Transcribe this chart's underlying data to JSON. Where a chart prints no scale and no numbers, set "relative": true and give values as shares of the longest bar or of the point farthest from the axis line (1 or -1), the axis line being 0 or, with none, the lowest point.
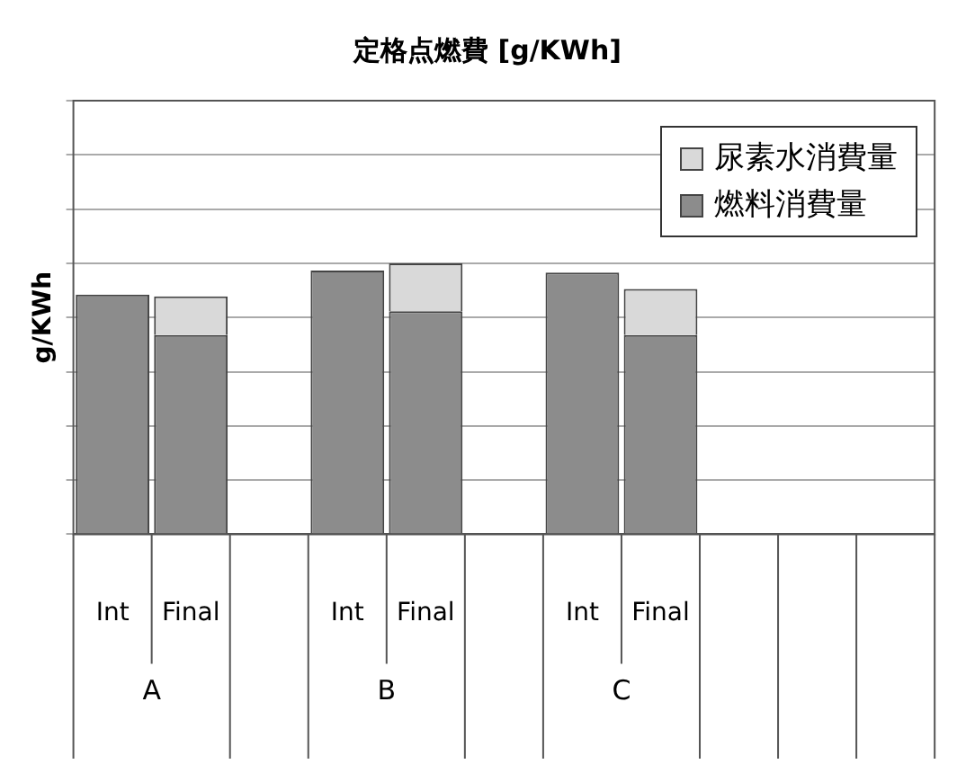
{
  "chart_data": {
    "type": "bar",
    "title": "定格点燃費 [g/KWh]",
    "ylabel": "g/KWh",
    "categories": [
      "Int",
      "Final",
      null,
      "Int",
      "Final",
      null,
      "Int",
      "Final",
      null,
      null,
      null
    ],
    "annotations": [
      "A",
      "B",
      "C"
    ],
    "stacked": true,
    "relative": true,
    "grid": "y",
    "legend": "top right",
    "series": [
      {
        "name": "燃料消費量",
        "color": "#8c8c8c",
        "values": [
          0.884,
          0.735,
          null,
          0.973,
          0.823,
          null,
          0.966,
          0.735,
          null,
          null,
          null
        ]
      },
      {
        "name": "尿素水消費量",
        "color": "#d9d9d9",
        "values": [
          null,
          0.143,
          null,
          null,
          0.177,
          null,
          null,
          0.17,
          null,
          null,
          null
        ]
      }
    ]
  }
}
